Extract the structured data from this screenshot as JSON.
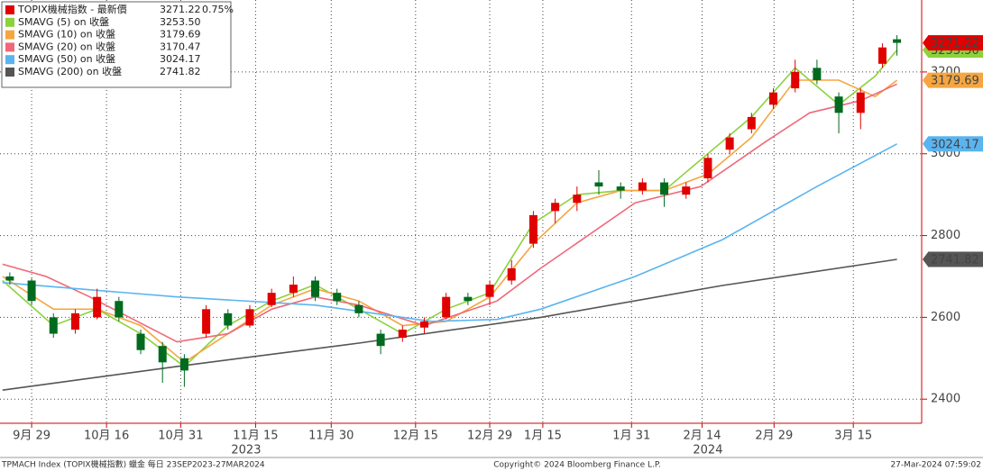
{
  "chart_data": {
    "type": "candlestick",
    "xlim": [
      -4.35,
      122.4
    ],
    "ylim": [
      2341,
      3376
    ],
    "yticks": [
      2400,
      2600,
      2800,
      3000,
      3200
    ],
    "xticks": [
      {
        "value": 0,
        "label": "9月 29"
      },
      {
        "value": 10.3,
        "label": "10月 16"
      },
      {
        "value": 20.5,
        "label": "10月 31"
      },
      {
        "value": 30.8,
        "label": "11月 15"
      },
      {
        "value": 41.2,
        "label": "11月 30"
      },
      {
        "value": 52.8,
        "label": "12月 15"
      },
      {
        "value": 63,
        "label": "12月 29"
      },
      {
        "value": 70.3,
        "label": "1月 15"
      },
      {
        "value": 82.5,
        "label": "1月 31"
      },
      {
        "value": 92.2,
        "label": "2月 14"
      },
      {
        "value": 102.1,
        "label": "2月 29"
      },
      {
        "value": 113,
        "label": "3月 15"
      }
    ],
    "year_labels": [
      {
        "value": 29.5,
        "label": "2023"
      },
      {
        "value": 93,
        "label": "2024"
      }
    ],
    "grid": true,
    "candles": {
      "name": "TOPIX機械指数 - 最新價",
      "value_label": "3271.22",
      "change": {
        "value": 0.75,
        "label": "0.75%"
      },
      "up_color": "#e00000",
      "down_color": "#006a1e",
      "x": [
        -3,
        0,
        3,
        6,
        9,
        12,
        15,
        18,
        21,
        24,
        27,
        30,
        33,
        36,
        39,
        42,
        45,
        48,
        51,
        54,
        57,
        60,
        63,
        66,
        69,
        72,
        75,
        78,
        81,
        84,
        87,
        90,
        93,
        96,
        99,
        102,
        105,
        108,
        111,
        114,
        117,
        119
      ],
      "open": [
        2700,
        2690,
        2600,
        2570,
        2600,
        2640,
        2560,
        2530,
        2500,
        2560,
        2610,
        2580,
        2630,
        2660,
        2690,
        2660,
        2630,
        2560,
        2550,
        2575,
        2600,
        2650,
        2650,
        2690,
        2780,
        2860,
        2880,
        2930,
        2920,
        2910,
        2930,
        2900,
        2940,
        3010,
        3060,
        3120,
        3160,
        3210,
        3140,
        3100,
        3220,
        3280
      ],
      "high": [
        2710,
        2695,
        2610,
        2620,
        2670,
        2650,
        2570,
        2540,
        2510,
        2630,
        2620,
        2630,
        2670,
        2700,
        2700,
        2670,
        2640,
        2570,
        2580,
        2600,
        2660,
        2660,
        2690,
        2740,
        2860,
        2890,
        2920,
        2960,
        2930,
        2940,
        2940,
        2930,
        3000,
        3050,
        3100,
        3160,
        3230,
        3230,
        3150,
        3160,
        3270,
        3290
      ],
      "low": [
        2680,
        2630,
        2550,
        2560,
        2595,
        2590,
        2510,
        2440,
        2430,
        2550,
        2570,
        2575,
        2625,
        2650,
        2640,
        2630,
        2600,
        2510,
        2540,
        2560,
        2595,
        2630,
        2630,
        2680,
        2770,
        2830,
        2860,
        2900,
        2890,
        2900,
        2870,
        2890,
        2930,
        3000,
        3050,
        3110,
        3150,
        3170,
        3050,
        3060,
        3210,
        3240
      ],
      "close": [
        2690,
        2640,
        2560,
        2610,
        2650,
        2600,
        2520,
        2490,
        2470,
        2620,
        2580,
        2620,
        2660,
        2680,
        2650,
        2640,
        2610,
        2530,
        2570,
        2590,
        2650,
        2640,
        2680,
        2720,
        2850,
        2880,
        2900,
        2920,
        2910,
        2930,
        2900,
        2920,
        2990,
        3040,
        3090,
        3150,
        3200,
        3180,
        3100,
        3150,
        3260,
        3271.22
      ]
    },
    "series": [
      {
        "name": "SMAVG (5)  on 收盤",
        "value_label": "3253.50",
        "color": "#8cd23c",
        "x": [
          -4,
          3,
          9,
          15,
          21,
          27,
          33,
          39,
          45,
          51,
          57,
          63,
          69,
          75,
          81,
          87,
          93,
          99,
          105,
          111,
          116,
          119
        ],
        "values": [
          2690,
          2580,
          2620,
          2560,
          2480,
          2580,
          2640,
          2680,
          2620,
          2560,
          2620,
          2660,
          2830,
          2900,
          2910,
          2910,
          3000,
          3090,
          3210,
          3120,
          3190,
          3253.5
        ]
      },
      {
        "name": "SMAVG (10)  on 收盤",
        "value_label": "3179.69",
        "color": "#f5a640",
        "x": [
          -4,
          3,
          9,
          15,
          21,
          27,
          33,
          39,
          45,
          51,
          57,
          63,
          69,
          75,
          81,
          87,
          93,
          99,
          105,
          111,
          116,
          119
        ],
        "values": [
          2700,
          2620,
          2620,
          2580,
          2490,
          2560,
          2630,
          2670,
          2640,
          2580,
          2590,
          2650,
          2780,
          2880,
          2910,
          2910,
          2950,
          3040,
          3180,
          3180,
          3140,
          3179.69
        ]
      },
      {
        "name": "SMAVG (20)  on 收盤",
        "value_label": "3170.47",
        "color": "#f06878",
        "x": [
          -4,
          2,
          8,
          20,
          27,
          33,
          39,
          45,
          54,
          64,
          70,
          83,
          92,
          101,
          107,
          114,
          119
        ],
        "values": [
          2730,
          2700,
          2650,
          2540,
          2560,
          2620,
          2650,
          2630,
          2580,
          2640,
          2720,
          2880,
          2920,
          3030,
          3100,
          3130,
          3170.47
        ]
      },
      {
        "name": "SMAVG (50)  on 收盤",
        "value_label": "3024.17",
        "color": "#5ab4f0",
        "x": [
          -4,
          20,
          39,
          55,
          64,
          70,
          83,
          95,
          108,
          119
        ],
        "values": [
          2685,
          2650,
          2630,
          2590,
          2595,
          2620,
          2700,
          2790,
          2920,
          3024.17
        ]
      },
      {
        "name": "SMAVG (200)  on 收盤",
        "value_label": "2741.82",
        "color": "#555555",
        "x": [
          -4,
          20,
          45,
          70,
          95,
          119
        ],
        "values": [
          2422,
          2480,
          2537,
          2600,
          2678,
          2741.82
        ]
      }
    ],
    "footer": {
      "left": "TPMACH Index (TOPIX機械指數) 蠟金  每日 23SEP2023-27MAR2024",
      "center": "Copyright© 2024 Bloomberg Finance L.P.",
      "right": "27-Mar-2024 07:59:02"
    }
  }
}
